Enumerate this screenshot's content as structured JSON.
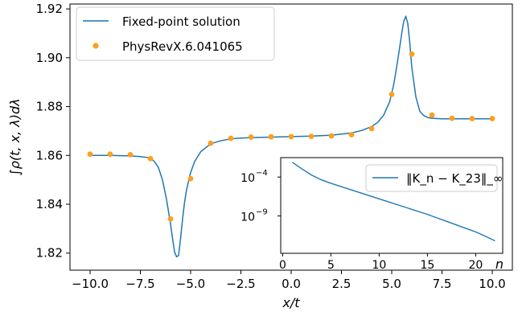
{
  "chart_data": [
    {
      "type": "line",
      "role": "main",
      "xlabel": "x/t",
      "ylabel": "∫ρ(t, x, λ)dλ",
      "xlim": [
        -11,
        11
      ],
      "ylim": [
        1.813,
        1.922
      ],
      "xticks": [
        -10,
        -7.5,
        -5,
        -2.5,
        0,
        2.5,
        5,
        7.5,
        10
      ],
      "xtick_labels": [
        "−10.0",
        "−7.5",
        "−5.0",
        "−2.5",
        "0.0",
        "2.5",
        "5.0",
        "7.5",
        "10.0"
      ],
      "yticks": [
        1.82,
        1.84,
        1.86,
        1.88,
        1.9,
        1.92
      ],
      "ytick_labels": [
        "1.82",
        "1.84",
        "1.86",
        "1.88",
        "1.90",
        "1.92"
      ],
      "legend": {
        "placement": "top-left",
        "entries": [
          "Fixed-point solution",
          "PhysRevX.6.041065"
        ]
      },
      "series": [
        {
          "name": "Fixed-point solution",
          "kind": "line",
          "color": "#1f77b4",
          "x": [
            -10,
            -9,
            -8,
            -7.5,
            -7,
            -6.8,
            -6.6,
            -6.4,
            -6.2,
            -6.0,
            -5.9,
            -5.8,
            -5.7,
            -5.6,
            -5.5,
            -5.4,
            -5.3,
            -5.2,
            -5.0,
            -4.8,
            -4.5,
            -4.2,
            -4.0,
            -3.5,
            -3,
            -2.5,
            -2,
            -1,
            0,
            1,
            2,
            3,
            3.5,
            4,
            4.3,
            4.6,
            4.9,
            5.1,
            5.3,
            5.5,
            5.6,
            5.7,
            5.8,
            5.9,
            6.0,
            6.2,
            6.4,
            6.6,
            6.8,
            7.0,
            7.5,
            8,
            9,
            10
          ],
          "y": [
            1.86,
            1.86,
            1.8598,
            1.8595,
            1.859,
            1.8575,
            1.855,
            1.85,
            1.842,
            1.832,
            1.826,
            1.8205,
            1.8185,
            1.819,
            1.826,
            1.834,
            1.841,
            1.846,
            1.853,
            1.8575,
            1.8615,
            1.8635,
            1.8648,
            1.866,
            1.8668,
            1.8671,
            1.8673,
            1.8675,
            1.8677,
            1.8679,
            1.8683,
            1.8692,
            1.8702,
            1.8718,
            1.8735,
            1.8765,
            1.882,
            1.889,
            1.899,
            1.91,
            1.915,
            1.917,
            1.914,
            1.906,
            1.896,
            1.884,
            1.878,
            1.8763,
            1.8755,
            1.8752,
            1.875,
            1.875,
            1.875,
            1.875
          ]
        },
        {
          "name": "PhysRevX.6.041065",
          "kind": "scatter",
          "color": "#ff9f1c",
          "x": [
            -10,
            -9,
            -8,
            -7,
            -6,
            -5,
            -4,
            -3,
            -2,
            -1,
            0,
            1,
            2,
            3,
            4,
            5,
            6,
            7,
            8,
            9,
            10
          ],
          "y": [
            1.8605,
            1.8605,
            1.8603,
            1.8587,
            1.834,
            1.8505,
            1.865,
            1.867,
            1.8675,
            1.8676,
            1.8677,
            1.8678,
            1.868,
            1.8685,
            1.871,
            1.885,
            1.9015,
            1.8765,
            1.8752,
            1.8751,
            1.8751
          ]
        }
      ]
    },
    {
      "type": "line",
      "role": "inset",
      "xlabel": "n",
      "log_y": true,
      "xlim": [
        -0.2,
        22.8
      ],
      "ylim_log10": [
        -13.8,
        -1.5
      ],
      "xticks": [
        0,
        5,
        10,
        15,
        20
      ],
      "xtick_labels": [
        "0",
        "5",
        "10",
        "15",
        "20"
      ],
      "yticks_log10": [
        -4,
        -9
      ],
      "ytick_labels": [
        "10",
        "10"
      ],
      "ytick_exponents": [
        "−4",
        "−9"
      ],
      "legend": {
        "placement": "top-right",
        "entries": [
          "‖K_n − K_23‖_∞"
        ]
      },
      "series": [
        {
          "name": "‖K_n − K_23‖_∞",
          "color": "#1f77b4",
          "x": [
            1,
            2,
            3,
            4,
            5,
            6,
            7,
            8,
            9,
            10,
            11,
            12,
            13,
            14,
            15,
            16,
            17,
            18,
            19,
            20,
            21,
            22
          ],
          "log10_y": [
            -2.1,
            -2.95,
            -3.75,
            -4.35,
            -4.8,
            -5.2,
            -5.6,
            -6.0,
            -6.4,
            -6.8,
            -7.2,
            -7.6,
            -8.0,
            -8.4,
            -8.8,
            -9.25,
            -9.7,
            -10.15,
            -10.6,
            -11.05,
            -11.6,
            -12.2
          ]
        }
      ]
    }
  ]
}
